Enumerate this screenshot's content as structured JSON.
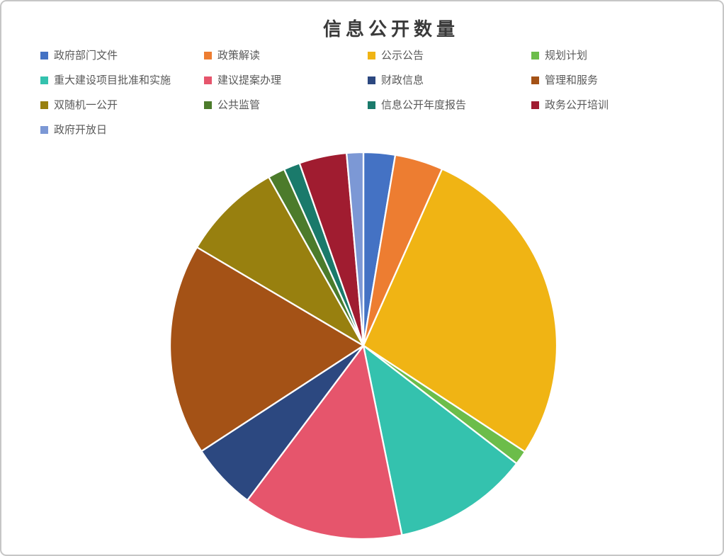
{
  "page": {
    "background_color": "#ffffff",
    "border_color": "#c6c6c6"
  },
  "chart_data": {
    "type": "pie",
    "title": "信息公开数量",
    "legend_position": "top",
    "legend_columns": 4,
    "start_angle_deg": 0,
    "direction": "clockwise",
    "categories": [
      "政府部门文件",
      "政策解读",
      "公示公告",
      "规划计划",
      "重大建设项目批准和实施",
      "建议提案办理",
      "财政信息",
      "管理和服务",
      "双随机一公开",
      "公共监管",
      "信息公开年度报告",
      "政务公开培训",
      "政府开放日"
    ],
    "values_percent_estimated": [
      2.64,
      4.03,
      27.58,
      1.19,
      11.36,
      13.44,
      5.56,
      17.69,
      8.36,
      1.42,
      1.36,
      3.97,
      1.39
    ],
    "colors": [
      "#4472C4",
      "#ED7D31",
      "#F0B414",
      "#6CBD4A",
      "#34C2AE",
      "#E6556C",
      "#2C4880",
      "#A45216",
      "#98800F",
      "#4C7B2B",
      "#1A7A6B",
      "#A01C30",
      "#7C98D5"
    ],
    "title_color": "#3a3a3a",
    "legend_text_color": "#595959",
    "slice_separator_color": "#ffffff"
  }
}
